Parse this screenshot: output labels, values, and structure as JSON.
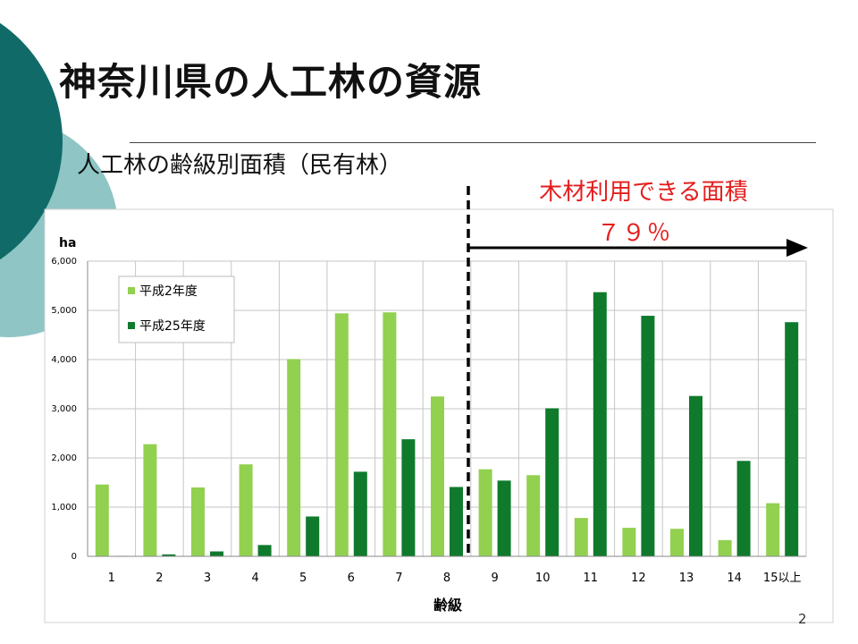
{
  "slide": {
    "title": "神奈川県の人工林の資源",
    "subtitle": "人工林の齢級別面積（民有林）",
    "usable_label": "木材利用できる面積",
    "usable_percent": "７９％",
    "page_number": "2"
  },
  "colors": {
    "accent_teal": "#0f6a68",
    "accent_teal_light": "#8fc5c5",
    "series_1990": "#92d050",
    "series_2013": "#0f7a2c",
    "annotation_red": "#e41d1d"
  },
  "chart_data": {
    "type": "bar",
    "ylabel": "ha",
    "xlabel": "齢級",
    "ylim": [
      0,
      6000
    ],
    "yticks": [
      "0",
      "1,000",
      "2,000",
      "3,000",
      "4,000",
      "5,000",
      "6,000"
    ],
    "categories": [
      "1",
      "2",
      "3",
      "4",
      "5",
      "6",
      "7",
      "8",
      "9",
      "10",
      "11",
      "12",
      "13",
      "14",
      "15以上"
    ],
    "series": [
      {
        "name": "平成2年度",
        "values": [
          1460,
          2280,
          1400,
          1870,
          4010,
          4940,
          4960,
          3250,
          1770,
          1650,
          780,
          580,
          560,
          330,
          1080
        ]
      },
      {
        "name": "平成25年度",
        "values": [
          10,
          40,
          100,
          230,
          810,
          1720,
          2380,
          1410,
          1540,
          3010,
          5370,
          4890,
          3260,
          1940,
          4760
        ]
      }
    ],
    "legend": "top-left",
    "grid": true,
    "marker": {
      "type": "dashed-vertical-line",
      "between": [
        "8",
        "9"
      ]
    }
  }
}
